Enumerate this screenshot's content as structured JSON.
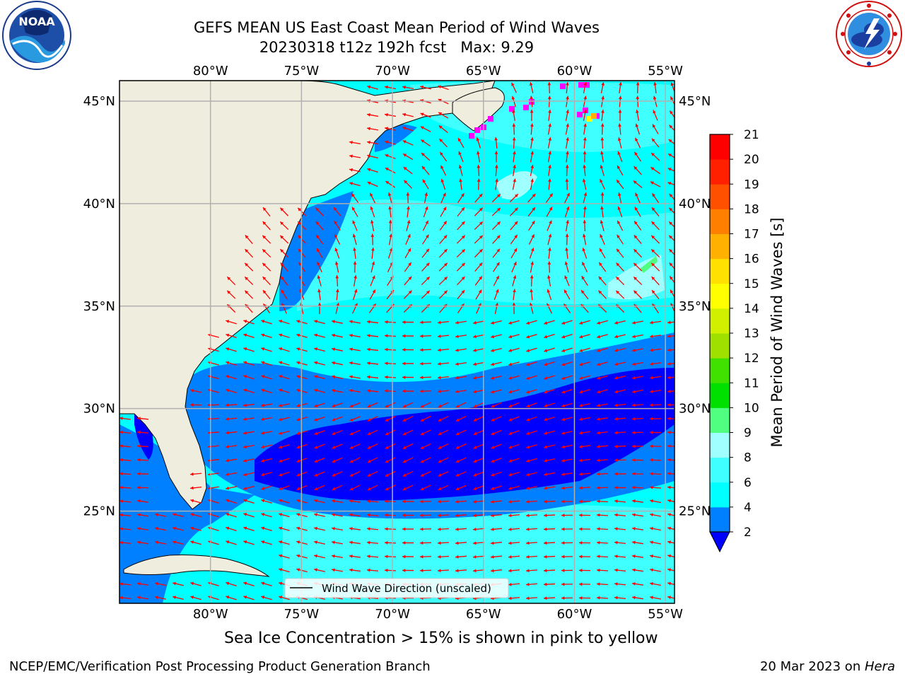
{
  "header": {
    "title_line1": "GEFS MEAN US East Coast Mean Period of Wind Waves",
    "title_line2": "20230318 t12z 192h fcst   Max: 9.29"
  },
  "logos": {
    "left": {
      "icon": "noaa-logo",
      "text": "NOAA"
    },
    "right": {
      "icon": "national-weather-service-logo"
    }
  },
  "map": {
    "lon_labels": [
      "80°W",
      "75°W",
      "70°W",
      "65°W",
      "60°W",
      "55°W"
    ],
    "lat_labels": [
      "45°N",
      "40°N",
      "35°N",
      "30°N",
      "25°N"
    ],
    "lon_range": [
      -85,
      -54.5
    ],
    "lat_range": [
      20.5,
      46
    ],
    "legend_label": "Wind Wave Direction (unscaled)",
    "arrow_color": "#ff0000",
    "land_color": "#efedde",
    "gridline_color": "#b0b0b0"
  },
  "colorbar": {
    "label": "Mean Period of Wind Waves [s]",
    "tick_labels": [
      "2",
      "4",
      "6",
      "8",
      "9",
      "10",
      "11",
      "12",
      "13",
      "14",
      "15",
      "16",
      "17",
      "18",
      "19",
      "20",
      "21"
    ],
    "levels": [
      2,
      4,
      6,
      8,
      9,
      10,
      11,
      12,
      13,
      14,
      15,
      16,
      17,
      18,
      19,
      20,
      21
    ],
    "colors": [
      "#0080ff",
      "#00ffff",
      "#40ffff",
      "#a0ffff",
      "#50ff80",
      "#00e000",
      "#40e000",
      "#a0e000",
      "#d0f000",
      "#ffff00",
      "#ffe000",
      "#ffb000",
      "#ff8000",
      "#ff5000",
      "#ff2000",
      "#ff0000"
    ],
    "under_color": "#0000ff"
  },
  "footer": {
    "ice_note": "Sea Ice Concentration > 15% is shown in pink to yellow",
    "left": "NCEP/EMC/Verification Post Processing Product Generation Branch",
    "right_prefix": "20 Mar 2023 on ",
    "right_machine": "Hera"
  }
}
